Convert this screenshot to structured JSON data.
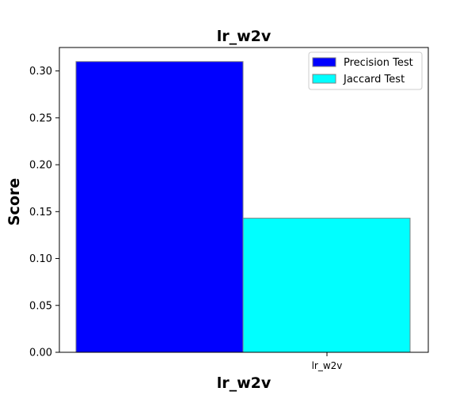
{
  "chart_data": {
    "type": "bar",
    "title": "lr_w2v",
    "xlabel": "lr_w2v",
    "ylabel": "Score",
    "categories": [
      "lr_w2v"
    ],
    "series": [
      {
        "name": "Precision Test",
        "values": [
          0.31
        ],
        "color": "#0000ff"
      },
      {
        "name": "Jaccard Test",
        "values": [
          0.143
        ],
        "color": "#00ffff"
      }
    ],
    "ylim": [
      0,
      0.325
    ],
    "yticks": [
      "0.00",
      "0.05",
      "0.10",
      "0.15",
      "0.20",
      "0.25",
      "0.30"
    ],
    "grid": false,
    "legend_position": "top-right",
    "bar_edge_color": "#808080"
  }
}
